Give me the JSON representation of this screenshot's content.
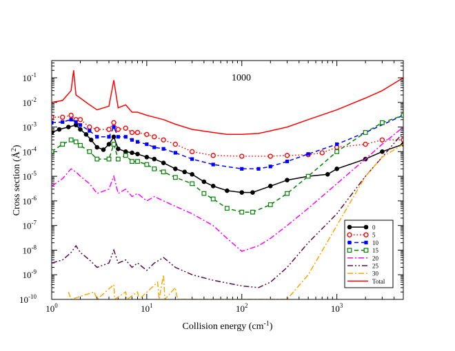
{
  "chart_data": {
    "type": "line",
    "title": "",
    "annotation": "1000",
    "xlabel": "Collision energy (cm",
    "xlabel_sup": "-1",
    "xlabel_close": ")",
    "ylabel": "Cross section (",
    "ylabel_unit": "Å",
    "ylabel_sup": "2",
    "ylabel_close": ")",
    "x_scale": "log",
    "y_scale": "log",
    "xlim": [
      1,
      5000
    ],
    "ylim": [
      1e-10,
      0.5
    ],
    "x_ticks": [
      {
        "value": 1,
        "base": "10",
        "exp": "0"
      },
      {
        "value": 10,
        "base": "10",
        "exp": "1"
      },
      {
        "value": 100,
        "base": "10",
        "exp": "2"
      },
      {
        "value": 1000,
        "base": "10",
        "exp": "3"
      }
    ],
    "y_ticks": [
      {
        "value": 1e-10,
        "base": "10",
        "exp": "-10"
      },
      {
        "value": 1e-09,
        "base": "10",
        "exp": "-9"
      },
      {
        "value": 1e-08,
        "base": "10",
        "exp": "-8"
      },
      {
        "value": 1e-07,
        "base": "10",
        "exp": "-7"
      },
      {
        "value": 1e-06,
        "base": "10",
        "exp": "-6"
      },
      {
        "value": 1e-05,
        "base": "10",
        "exp": "-5"
      },
      {
        "value": 0.0001,
        "base": "10",
        "exp": "-4"
      },
      {
        "value": 0.001,
        "base": "10",
        "exp": "-3"
      },
      {
        "value": 0.01,
        "base": "10",
        "exp": "-2"
      },
      {
        "value": 0.1,
        "base": "10",
        "exp": "-1"
      }
    ],
    "legend_position": "bottom-right",
    "series": [
      {
        "name": "0",
        "color": "#000000",
        "dash": "solid",
        "marker": "filled-circle",
        "points": [
          [
            1,
            0.0006
          ],
          [
            1.2,
            0.0008
          ],
          [
            1.5,
            0.001
          ],
          [
            1.8,
            0.0012
          ],
          [
            2.0,
            0.0008
          ],
          [
            2.3,
            0.0005
          ],
          [
            2.6,
            0.0003
          ],
          [
            3.0,
            0.00015
          ],
          [
            3.5,
            0.00012
          ],
          [
            4.0,
            0.0002
          ],
          [
            4.5,
            0.0004
          ],
          [
            5.0,
            0.00013
          ],
          [
            6.0,
            0.0001
          ],
          [
            7.0,
            9e-05
          ],
          [
            8.0,
            8e-05
          ],
          [
            10,
            6e-05
          ],
          [
            12,
            5e-05
          ],
          [
            15,
            3.5e-05
          ],
          [
            20,
            2e-05
          ],
          [
            25,
            1.5e-05
          ],
          [
            30,
            1.2e-05
          ],
          [
            40,
            6e-06
          ],
          [
            50,
            4e-06
          ],
          [
            70,
            2.6e-06
          ],
          [
            100,
            2.2e-06
          ],
          [
            130,
            2.2e-06
          ],
          [
            200,
            4e-06
          ],
          [
            300,
            7e-06
          ],
          [
            500,
            1e-05
          ],
          [
            800,
            1.2e-05
          ],
          [
            1000,
            2e-05
          ],
          [
            2000,
            5e-05
          ],
          [
            3000,
            0.0001
          ],
          [
            5000,
            0.0002
          ]
        ]
      },
      {
        "name": "5",
        "color": "#ff0000",
        "dash": "dotted",
        "marker": "open-circle",
        "points": [
          [
            1,
            0.0025
          ],
          [
            1.3,
            0.0025
          ],
          [
            1.6,
            0.003
          ],
          [
            1.8,
            0.002
          ],
          [
            2.0,
            0.002
          ],
          [
            2.5,
            0.001
          ],
          [
            3.0,
            0.0008
          ],
          [
            4.0,
            0.0008
          ],
          [
            4.5,
            0.0015
          ],
          [
            5.0,
            0.0008
          ],
          [
            6.0,
            0.0009
          ],
          [
            7.0,
            0.0006
          ],
          [
            8.0,
            0.0006
          ],
          [
            10,
            0.0005
          ],
          [
            12,
            0.0004
          ],
          [
            15,
            0.0003
          ],
          [
            20,
            0.0002
          ],
          [
            30,
            0.0001
          ],
          [
            50,
            7e-05
          ],
          [
            100,
            6.5e-05
          ],
          [
            200,
            6.5e-05
          ],
          [
            300,
            7e-05
          ],
          [
            500,
            7.5e-05
          ],
          [
            700,
            9e-05
          ],
          [
            1000,
            0.00015
          ],
          [
            2000,
            0.0002
          ],
          [
            3000,
            0.0003
          ],
          [
            5000,
            0.0003
          ]
        ]
      },
      {
        "name": "10",
        "color": "#0000ff",
        "dash": "dashed",
        "marker": "filled-square",
        "points": [
          [
            1,
            0.0015
          ],
          [
            1.3,
            0.0016
          ],
          [
            1.6,
            0.002
          ],
          [
            1.8,
            0.0016
          ],
          [
            2.0,
            0.0012
          ],
          [
            2.5,
            0.0007
          ],
          [
            3.0,
            0.0004
          ],
          [
            4.0,
            0.0004
          ],
          [
            4.5,
            0.001
          ],
          [
            5.0,
            0.0004
          ],
          [
            6.0,
            0.0004
          ],
          [
            7.0,
            0.0003
          ],
          [
            8.0,
            0.00025
          ],
          [
            10,
            0.0002
          ],
          [
            12,
            0.00015
          ],
          [
            15,
            0.00013
          ],
          [
            20,
            9e-05
          ],
          [
            30,
            5e-05
          ],
          [
            50,
            3e-05
          ],
          [
            100,
            2e-05
          ],
          [
            150,
            2e-05
          ],
          [
            200,
            2.5e-05
          ],
          [
            300,
            4e-05
          ],
          [
            500,
            8e-05
          ],
          [
            1000,
            0.0002
          ],
          [
            2000,
            0.0006
          ],
          [
            5000,
            0.003
          ]
        ]
      },
      {
        "name": "15",
        "color": "#008000",
        "dash": "dashed",
        "marker": "open-square",
        "points": [
          [
            1,
            0.0001
          ],
          [
            1.3,
            0.0002
          ],
          [
            1.6,
            0.0003
          ],
          [
            1.8,
            0.00025
          ],
          [
            2.0,
            0.00018
          ],
          [
            2.5,
            0.0001
          ],
          [
            3.0,
            5e-05
          ],
          [
            4.0,
            5e-05
          ],
          [
            4.5,
            0.0002
          ],
          [
            5.0,
            5e-05
          ],
          [
            6.0,
            7e-05
          ],
          [
            7.0,
            4e-05
          ],
          [
            8.0,
            4e-05
          ],
          [
            10,
            3e-05
          ],
          [
            12,
            2e-05
          ],
          [
            15,
            1.5e-05
          ],
          [
            20,
            9e-06
          ],
          [
            30,
            5e-06
          ],
          [
            40,
            2e-06
          ],
          [
            50,
            1.2e-06
          ],
          [
            70,
            5e-07
          ],
          [
            100,
            3.5e-07
          ],
          [
            130,
            3.5e-07
          ],
          [
            200,
            7e-07
          ],
          [
            300,
            2e-06
          ],
          [
            500,
            1e-05
          ],
          [
            1000,
            0.0001
          ],
          [
            2000,
            0.0006
          ],
          [
            3000,
            0.0015
          ],
          [
            5000,
            0.003
          ]
        ]
      },
      {
        "name": "20",
        "color": "#ff00ff",
        "dash": "dashdot",
        "marker": "none",
        "points": [
          [
            1,
            4e-06
          ],
          [
            1.3,
            8e-06
          ],
          [
            1.6,
            2e-05
          ],
          [
            1.8,
            1.5e-05
          ],
          [
            2.0,
            1e-05
          ],
          [
            2.5,
            5e-06
          ],
          [
            3.0,
            2e-06
          ],
          [
            4.0,
            3e-06
          ],
          [
            4.5,
            1e-05
          ],
          [
            5.0,
            2e-06
          ],
          [
            6.0,
            3e-06
          ],
          [
            7.0,
            1.5e-06
          ],
          [
            8.0,
            2e-06
          ],
          [
            10,
            1e-06
          ],
          [
            12,
            1.5e-06
          ],
          [
            15,
            1e-06
          ],
          [
            20,
            6e-07
          ],
          [
            30,
            3e-07
          ],
          [
            50,
            1e-07
          ],
          [
            70,
            3e-08
          ],
          [
            100,
            9e-09
          ],
          [
            150,
            1.5e-08
          ],
          [
            200,
            3e-08
          ],
          [
            300,
            1e-07
          ],
          [
            500,
            5e-07
          ],
          [
            1000,
            5e-06
          ],
          [
            2000,
            5e-05
          ],
          [
            3000,
            0.0002
          ],
          [
            5000,
            0.001
          ]
        ]
      },
      {
        "name": "25",
        "color": "#5a0a3c",
        "dash": "dashdotdot",
        "marker": "none",
        "points": [
          [
            1,
            3e-09
          ],
          [
            1.3,
            4e-09
          ],
          [
            1.6,
            8e-09
          ],
          [
            1.8,
            1.5e-08
          ],
          [
            2.0,
            8e-09
          ],
          [
            2.5,
            4e-09
          ],
          [
            3.0,
            2e-09
          ],
          [
            4.0,
            3e-09
          ],
          [
            4.5,
            1e-08
          ],
          [
            5.0,
            3e-09
          ],
          [
            6.0,
            4e-09
          ],
          [
            7.0,
            2e-09
          ],
          [
            8.0,
            3e-09
          ],
          [
            10,
            1.5e-09
          ],
          [
            12,
            3e-09
          ],
          [
            15,
            5e-09
          ],
          [
            20,
            2e-09
          ],
          [
            30,
            1e-09
          ],
          [
            50,
            6e-10
          ],
          [
            100,
            3.5e-10
          ],
          [
            150,
            3e-10
          ],
          [
            200,
            5e-10
          ],
          [
            300,
            2e-09
          ],
          [
            500,
            2e-08
          ],
          [
            1000,
            3e-07
          ],
          [
            2000,
            1e-05
          ],
          [
            3000,
            6e-05
          ],
          [
            5000,
            0.0006
          ]
        ]
      },
      {
        "name": "30",
        "color": "#ffa500",
        "dash": "dashdot",
        "marker": "none",
        "points": [
          [
            1.5,
            2e-10
          ],
          [
            1.6,
            1e-10
          ],
          [
            2.8,
            2e-10
          ],
          [
            3.0,
            1e-10
          ],
          [
            4.5,
            4e-10
          ],
          [
            4.6,
            1e-10
          ],
          [
            6.0,
            2e-10
          ],
          [
            6.2,
            1e-10
          ],
          [
            8.0,
            2e-10
          ],
          [
            8.3,
            1e-10
          ],
          [
            13,
            5e-10
          ],
          [
            13.5,
            1e-10
          ],
          [
            15,
            1e-09
          ],
          [
            15.5,
            1e-10
          ],
          [
            20,
            3e-10
          ],
          [
            21,
            1e-10
          ],
          [
            300,
            1e-10
          ],
          [
            500,
            1e-09
          ],
          [
            1000,
            1e-07
          ],
          [
            2000,
            1e-05
          ],
          [
            3000,
            6e-05
          ],
          [
            5000,
            0.0002
          ]
        ]
      },
      {
        "name": "Total",
        "color": "#ff0000",
        "dash": "solid",
        "marker": "none",
        "points": [
          [
            1,
            0.01
          ],
          [
            1.3,
            0.012
          ],
          [
            1.6,
            0.03
          ],
          [
            1.7,
            0.2
          ],
          [
            1.8,
            0.02
          ],
          [
            2.0,
            0.015
          ],
          [
            2.5,
            0.008
          ],
          [
            3.0,
            0.005
          ],
          [
            4.0,
            0.007
          ],
          [
            4.5,
            0.08
          ],
          [
            5.0,
            0.006
          ],
          [
            6.0,
            0.008
          ],
          [
            7.0,
            0.004
          ],
          [
            8.0,
            0.004
          ],
          [
            10,
            0.003
          ],
          [
            12,
            0.0025
          ],
          [
            15,
            0.002
          ],
          [
            20,
            0.0013
          ],
          [
            30,
            0.0008
          ],
          [
            50,
            0.0006
          ],
          [
            70,
            0.0005
          ],
          [
            100,
            0.0005
          ],
          [
            150,
            0.00055
          ],
          [
            200,
            0.0007
          ],
          [
            300,
            0.001
          ],
          [
            500,
            0.002
          ],
          [
            1000,
            0.005
          ],
          [
            2000,
            0.015
          ],
          [
            3000,
            0.03
          ],
          [
            5000,
            0.1
          ]
        ]
      }
    ]
  }
}
